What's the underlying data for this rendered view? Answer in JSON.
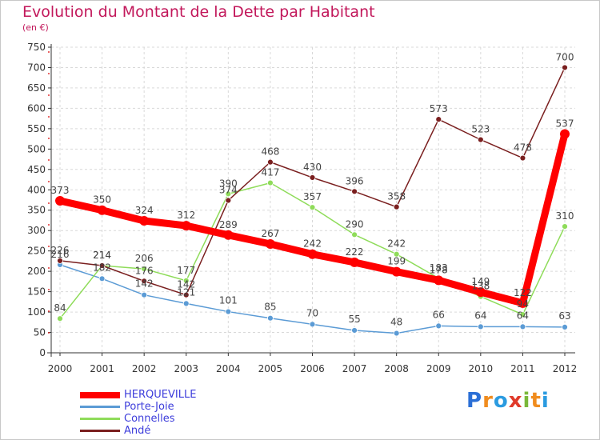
{
  "title": "Evolution du Montant de la Dette par Habitant",
  "subtitle": "(en €)",
  "brand": {
    "text": "Proxiti",
    "letters": [
      "P",
      "r",
      "o",
      "x",
      "i",
      "t",
      "i"
    ],
    "colors": [
      "#2b6fd6",
      "#f08c1e",
      "#2b9be0",
      "#e03a2a",
      "#7ab83a",
      "#f08c1e",
      "#2b9be0"
    ]
  },
  "chart_data": {
    "type": "line",
    "x": [
      "2000",
      "2001",
      "2002",
      "2003",
      "2004",
      "2005",
      "2006",
      "2007",
      "2008",
      "2009",
      "2010",
      "2011",
      "2012"
    ],
    "ylim": [
      0,
      750
    ],
    "yticks": [
      0,
      50,
      100,
      150,
      200,
      250,
      300,
      350,
      400,
      450,
      500,
      550,
      600,
      650,
      700,
      750
    ],
    "grid": true,
    "legend_position": "bottom-left",
    "series": [
      {
        "name": "HERQUEVILLE",
        "color": "#ff0000",
        "values": [
          373,
          350,
          324,
          312,
          289,
          267,
          242,
          222,
          199,
          178,
          149,
          122,
          537
        ]
      },
      {
        "name": "Porte-Joie",
        "color": "#5b9bd5",
        "values": [
          216,
          182,
          142,
          121,
          101,
          85,
          70,
          55,
          48,
          66,
          64,
          64,
          63
        ]
      },
      {
        "name": "Connelles",
        "color": "#8fdc5a",
        "values": [
          84,
          214,
          206,
          177,
          390,
          417,
          357,
          290,
          242,
          183,
          138,
          94,
          310
        ]
      },
      {
        "name": "Andé",
        "color": "#7a1f1f",
        "values": [
          226,
          214,
          176,
          142,
          374,
          468,
          430,
          396,
          358,
          573,
          523,
          478,
          700
        ]
      }
    ]
  }
}
